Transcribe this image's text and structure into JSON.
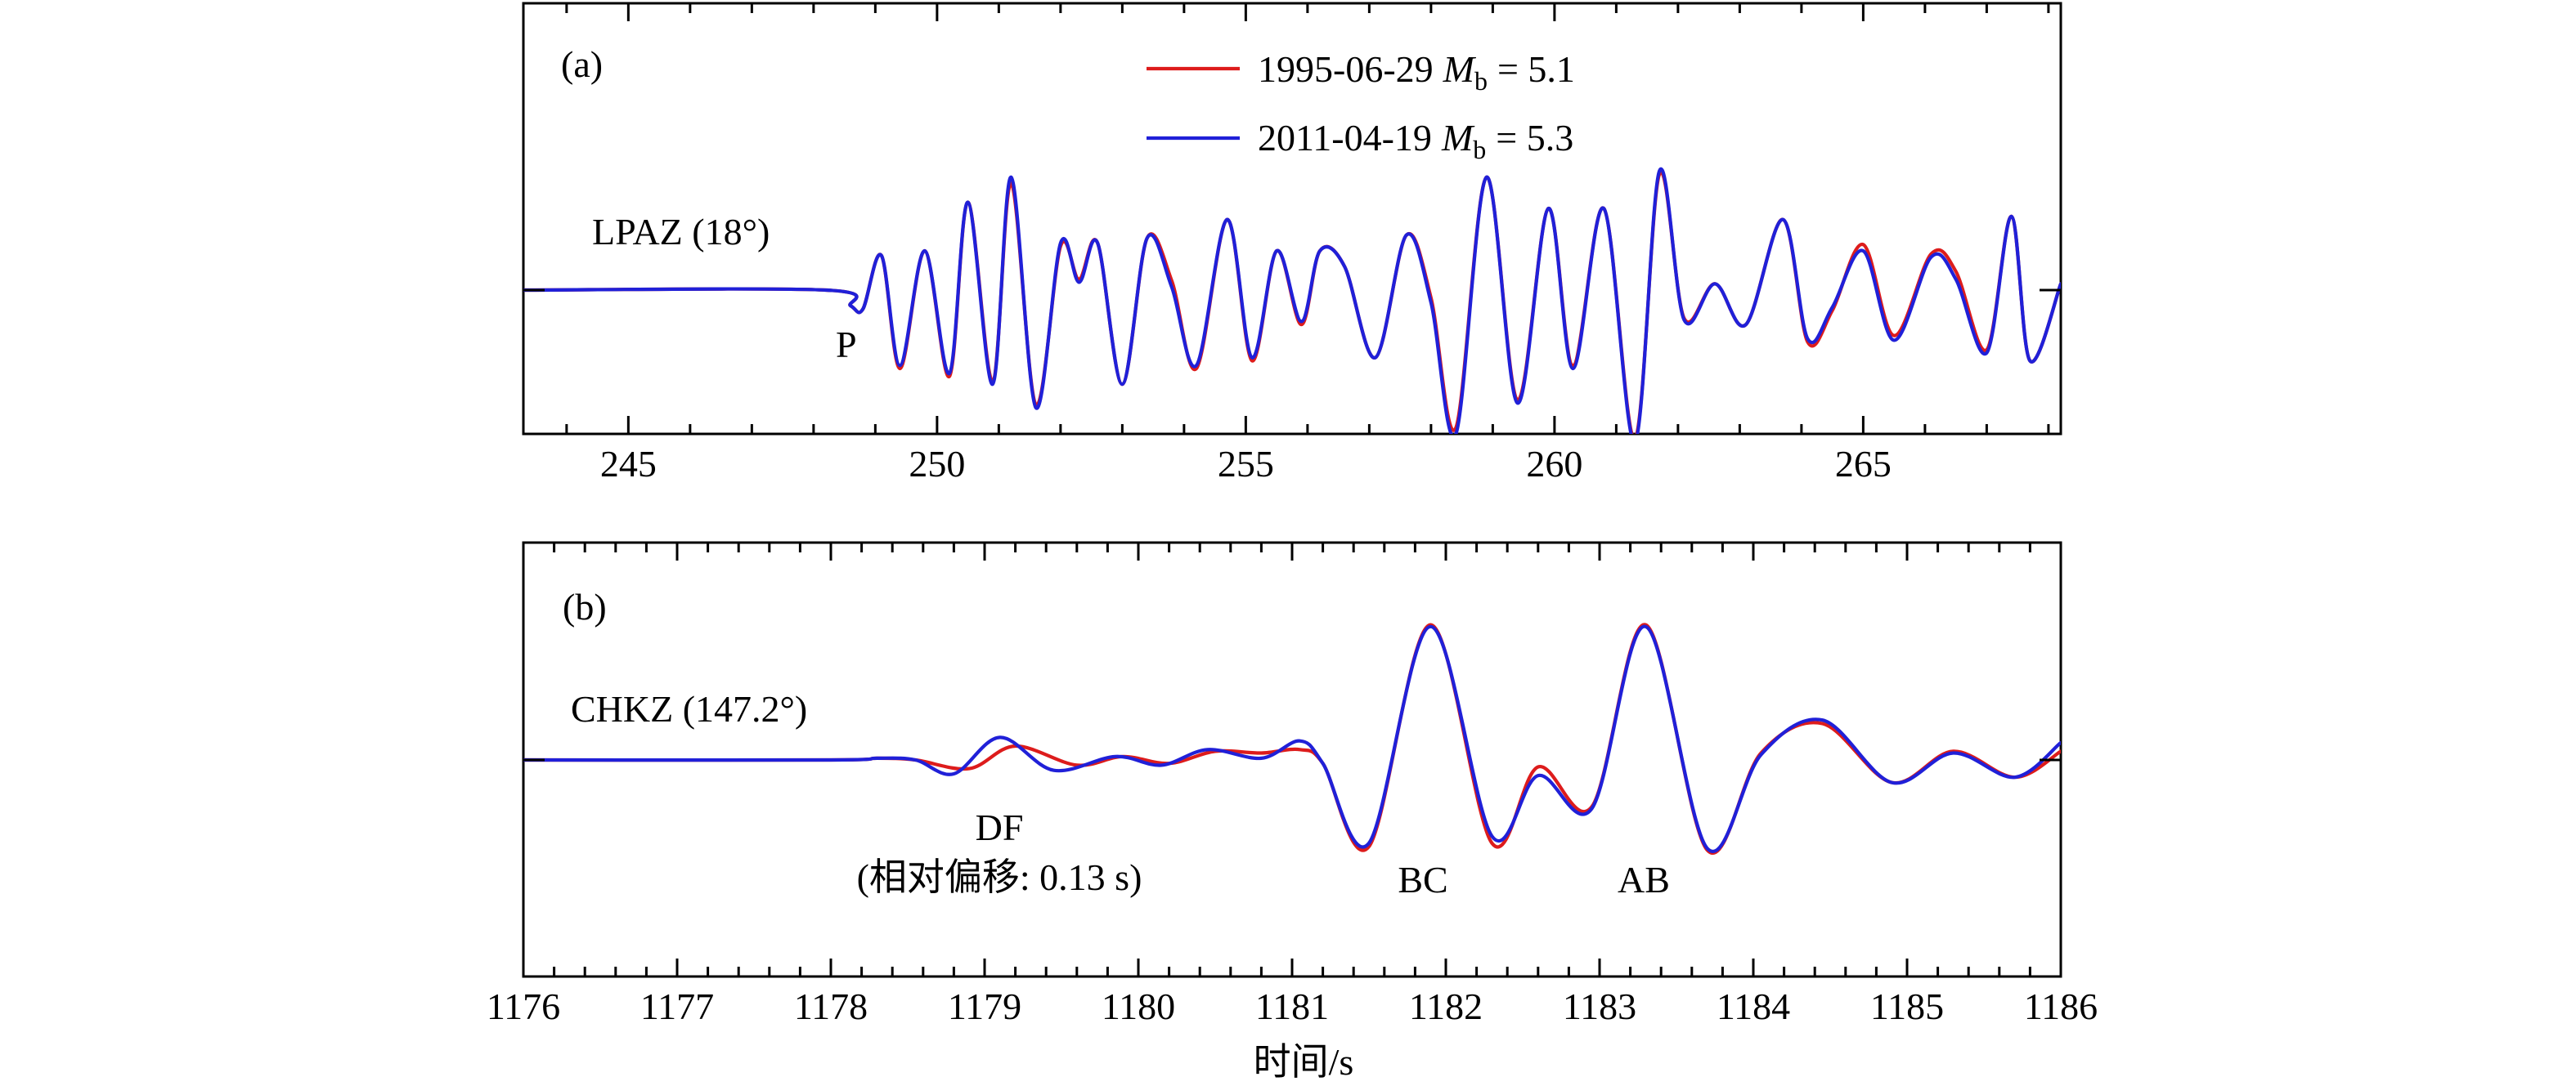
{
  "colors": {
    "red_series": "#dd1c1c",
    "blue_series": "#2020d8"
  },
  "chart_data": [
    {
      "type": "line",
      "panel_label": "(a)",
      "station_label": "LPAZ (18°)",
      "xlim": [
        243.3,
        268.2
      ],
      "xticks": [
        245,
        250,
        255,
        260,
        265
      ],
      "xtick_labels": [
        "245",
        "250",
        "255",
        "260",
        "265"
      ],
      "grid": false,
      "legend_placement": "top-center",
      "annotations": [
        {
          "text": "P",
          "x": 248.6
        }
      ],
      "series": [
        {
          "name": "1995-06-29 Mb = 5.1",
          "legend_date": "1995-06-29",
          "legend_value": "= 5.1",
          "color": "red",
          "x": [
            243.3,
            248.2,
            248.6,
            248.8,
            249.1,
            249.4,
            249.8,
            250.2,
            250.5,
            250.9,
            251.2,
            251.6,
            252.0,
            252.3,
            252.6,
            253.0,
            253.4,
            253.8,
            254.2,
            254.7,
            255.1,
            255.5,
            255.9,
            256.2,
            256.6,
            257.1,
            257.6,
            258.0,
            258.4,
            258.9,
            259.4,
            259.9,
            260.3,
            260.8,
            261.3,
            261.7,
            262.1,
            262.6,
            263.1,
            263.7,
            264.1,
            264.5,
            265.0,
            265.5,
            266.1,
            266.5,
            267.0,
            267.4,
            267.7,
            268.2
          ],
          "y": [
            0,
            0,
            -0.1,
            -0.12,
            0.22,
            -0.5,
            0.25,
            -0.55,
            0.56,
            -0.58,
            0.68,
            -0.73,
            0.28,
            0.07,
            0.3,
            -0.6,
            0.33,
            0.06,
            -0.5,
            0.45,
            -0.45,
            0.25,
            -0.22,
            0.25,
            0.15,
            -0.43,
            0.35,
            -0.05,
            -0.88,
            0.72,
            -0.7,
            0.52,
            -0.48,
            0.52,
            -0.95,
            0.74,
            -0.18,
            0.04,
            -0.22,
            0.45,
            -0.33,
            -0.13,
            0.29,
            -0.29,
            0.23,
            0.12,
            -0.38,
            0.47,
            -0.45,
            0.04
          ]
        },
        {
          "name": "2011-04-19 Mb = 5.3",
          "legend_date": "2011-04-19",
          "legend_value": "= 5.3",
          "color": "blue",
          "x": [
            243.3,
            248.2,
            248.6,
            248.8,
            249.1,
            249.4,
            249.8,
            250.2,
            250.5,
            250.9,
            251.2,
            251.6,
            252.0,
            252.3,
            252.6,
            253.0,
            253.4,
            253.8,
            254.2,
            254.7,
            255.1,
            255.5,
            255.9,
            256.2,
            256.6,
            257.1,
            257.6,
            258.0,
            258.4,
            258.9,
            259.4,
            259.9,
            260.3,
            260.8,
            261.3,
            261.7,
            262.1,
            262.6,
            263.1,
            263.7,
            264.1,
            264.5,
            265.0,
            265.5,
            266.1,
            266.5,
            267.0,
            267.4,
            267.7,
            268.2
          ],
          "y": [
            0,
            0,
            -0.1,
            -0.12,
            0.22,
            -0.48,
            0.25,
            -0.53,
            0.56,
            -0.6,
            0.72,
            -0.75,
            0.3,
            0.05,
            0.3,
            -0.6,
            0.33,
            0.02,
            -0.48,
            0.45,
            -0.43,
            0.25,
            -0.2,
            0.25,
            0.15,
            -0.43,
            0.35,
            -0.08,
            -0.92,
            0.72,
            -0.72,
            0.52,
            -0.5,
            0.52,
            -0.97,
            0.76,
            -0.19,
            0.04,
            -0.22,
            0.45,
            -0.31,
            -0.11,
            0.25,
            -0.32,
            0.21,
            0.07,
            -0.4,
            0.47,
            -0.45,
            0.04
          ]
        }
      ]
    },
    {
      "type": "line",
      "panel_label": "(b)",
      "station_label": "CHKZ (147.2°)",
      "xlabel": "时间/s",
      "xlim": [
        1176,
        1186
      ],
      "xticks": [
        1176,
        1177,
        1178,
        1179,
        1180,
        1181,
        1182,
        1183,
        1184,
        1185,
        1186
      ],
      "xtick_labels": [
        "1176",
        "1177",
        "1178",
        "1179",
        "1180",
        "1181",
        "1182",
        "1183",
        "1184",
        "1185",
        "1186"
      ],
      "grid": false,
      "annotations": [
        {
          "text": "DF",
          "x": 1179.0
        },
        {
          "text": "(相对偏移: 0.13 s)",
          "x": 1179.0
        },
        {
          "text": "BC",
          "x": 1181.85
        },
        {
          "text": "AB",
          "x": 1183.3
        }
      ],
      "series": [
        {
          "name": "1995-06-29 Mb = 5.1",
          "color": "red",
          "x": [
            1176.0,
            1178.0,
            1178.3,
            1178.55,
            1178.9,
            1179.2,
            1179.6,
            1179.9,
            1180.2,
            1180.5,
            1180.8,
            1181.05,
            1181.2,
            1181.5,
            1181.9,
            1182.3,
            1182.6,
            1182.95,
            1183.3,
            1183.7,
            1184.05,
            1184.45,
            1184.9,
            1185.3,
            1185.7,
            1186.0
          ],
          "y": [
            0,
            0,
            0.01,
            0,
            -0.05,
            0.08,
            -0.03,
            0.02,
            -0.02,
            0.05,
            0.04,
            0.06,
            -0.02,
            -0.5,
            0.78,
            -0.48,
            -0.04,
            -0.27,
            0.78,
            -0.52,
            0.04,
            0.21,
            -0.13,
            0.05,
            -0.1,
            0.05
          ]
        },
        {
          "name": "2011-04-19 Mb = 5.3",
          "color": "blue",
          "x": [
            1176.0,
            1178.0,
            1178.3,
            1178.55,
            1178.8,
            1179.1,
            1179.45,
            1179.85,
            1180.15,
            1180.45,
            1180.8,
            1181.05,
            1181.2,
            1181.5,
            1181.9,
            1182.3,
            1182.6,
            1182.95,
            1183.3,
            1183.7,
            1184.05,
            1184.45,
            1184.9,
            1185.3,
            1185.7,
            1186.0
          ],
          "y": [
            0,
            0,
            0.01,
            0,
            -0.08,
            0.13,
            -0.06,
            0.02,
            -0.03,
            0.06,
            0.01,
            0.11,
            -0.02,
            -0.48,
            0.77,
            -0.44,
            -0.09,
            -0.28,
            0.77,
            -0.51,
            0.03,
            0.23,
            -0.13,
            0.04,
            -0.1,
            0.1
          ]
        }
      ]
    }
  ]
}
